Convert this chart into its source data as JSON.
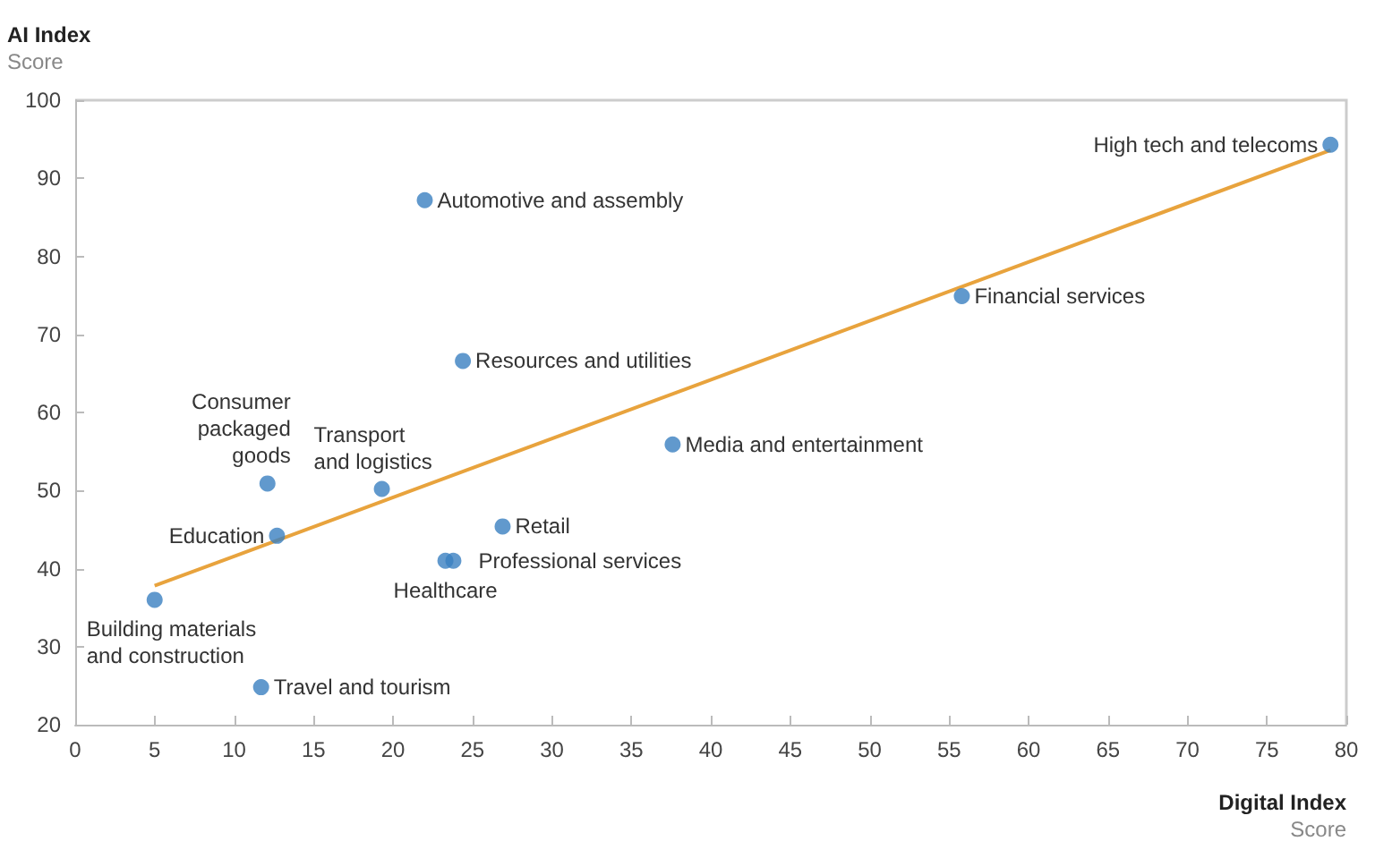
{
  "chart_data": {
    "type": "scatter",
    "xlabel": "Digital Index\nScore",
    "ylabel": "AI Index\nScore",
    "xlim": [
      0,
      80
    ],
    "xticks": [
      0,
      5,
      10,
      15,
      20,
      25,
      30,
      35,
      40,
      45,
      50,
      55,
      60,
      65,
      70,
      75,
      80
    ],
    "ylim": [
      20,
      100
    ],
    "yticks": [
      20,
      30,
      40,
      50,
      60,
      70,
      80,
      90,
      100
    ],
    "grid": false,
    "marker": "circle",
    "series": [
      {
        "color": "#3a7fc1",
        "x": [
          79,
          22,
          55.8,
          24.4,
          37.6,
          12.1,
          19.3,
          12.7,
          26.9,
          23.8,
          23.3,
          5,
          11.7
        ],
        "values": [
          94.3,
          87.2,
          74.9,
          66.6,
          55.9,
          50.9,
          50.2,
          44.2,
          45.4,
          41,
          41,
          36,
          24.8
        ]
      },
      {
        "type": "line",
        "color": "#e8a33d",
        "x": [
          5,
          79
        ],
        "values": [
          37.8,
          93.6
        ],
        "marker": "none",
        "line_style": "solid"
      }
    ],
    "annotations": [
      {
        "text": "High tech and telecoms",
        "x": 79,
        "y": 94.3
      },
      {
        "text": "Automotive and assembly",
        "x": 22,
        "y": 87.2
      },
      {
        "text": "Financial services",
        "x": 55.8,
        "y": 74.9
      },
      {
        "text": "Resources and utilities",
        "x": 24.4,
        "y": 66.6
      },
      {
        "text": "Media and entertainment",
        "x": 37.6,
        "y": 55.9
      },
      {
        "text": "Consumer\npackaged\ngoods",
        "x": 12.1,
        "y": 50.9
      },
      {
        "text": "Transport\nand logistics",
        "x": 19.3,
        "y": 50.2
      },
      {
        "text": "Education",
        "x": 12.7,
        "y": 44.2
      },
      {
        "text": "Retail",
        "x": 26.9,
        "y": 45.4
      },
      {
        "text": "Professional services",
        "x": 23.8,
        "y": 41
      },
      {
        "text": "Healthcare",
        "x": 23.3,
        "y": 41
      },
      {
        "text": "Building materials\nand construction",
        "x": 5,
        "y": 36
      },
      {
        "text": "Travel and tourism",
        "x": 11.7,
        "y": 24.8
      }
    ]
  }
}
